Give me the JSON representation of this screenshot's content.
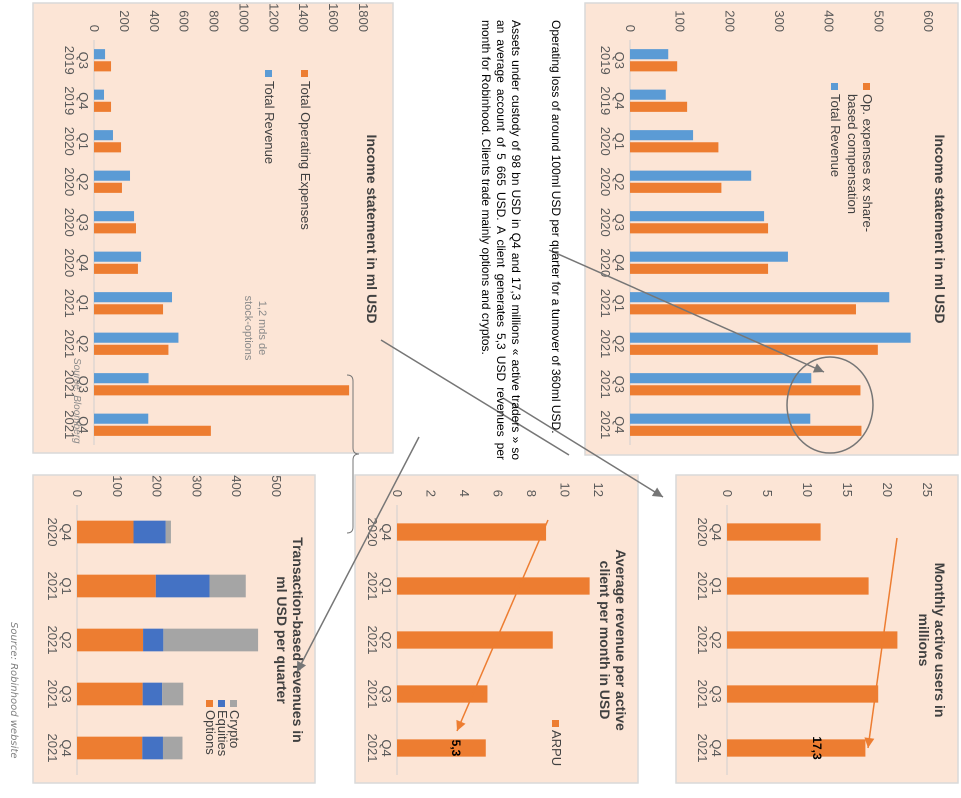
{
  "colors": {
    "orange": "#ed7d31",
    "blue": "#5b9bd5",
    "equities_blue": "#4472c4",
    "crypto_gray": "#a5a5a5",
    "panel_bg": "#fce5d6",
    "annotation_gray": "#767676"
  },
  "notes": {
    "operating_loss": "Operating loss of around 100ml USD per quarter for a tumover of 360ml USD.",
    "assets": "Assets under custody of 98 bn USD in Q4 and 17,3 millions « active traders » so an average account of 5 665 USD. A client generates 5,3 USD revenues per month for Robinhood. Clients trade mainly options and cryptos."
  },
  "source_label": "Source: Robinhood website",
  "chart_data": [
    {
      "id": "income_ex_sbc",
      "type": "bar",
      "title": "Income statement in ml USD",
      "categories": [
        "Q3 2019",
        "Q4 2019",
        "Q1 2020",
        "Q2 2020",
        "Q3 2020",
        "Q4 2020",
        "Q1 2021",
        "Q2 2021",
        "Q3 2021",
        "Q4 2021"
      ],
      "series": [
        {
          "name": "Op. expenses ex share-based compensation",
          "color": "#ed7d31",
          "values": [
            95,
            115,
            178,
            184,
            278,
            278,
            455,
            499,
            464,
            466
          ]
        },
        {
          "name": "Total Revenue",
          "color": "#5b9bd5",
          "values": [
            77,
            72,
            127,
            244,
            270,
            318,
            522,
            565,
            365,
            363
          ]
        }
      ],
      "ylim": [
        0,
        600
      ],
      "yticks": [
        0,
        100,
        200,
        300,
        400,
        500,
        600
      ],
      "legend": "top-left",
      "annotation": "ellipse around Q3 2021 and Q4 2021"
    },
    {
      "id": "income_total",
      "type": "bar",
      "title": "Income statement in ml USD",
      "categories": [
        "Q3 2019",
        "Q4 2019",
        "Q1 2020",
        "Q2 2020",
        "Q3 2020",
        "Q4 2020",
        "Q1 2021",
        "Q2 2021",
        "Q3 2021",
        "Q4 2021"
      ],
      "series": [
        {
          "name": "Total Operating Expenses",
          "color": "#ed7d31",
          "values": [
            114,
            114,
            181,
            187,
            281,
            294,
            462,
            498,
            1707,
            782
          ]
        },
        {
          "name": "Total Revenue",
          "color": "#5b9bd5",
          "values": [
            74,
            67,
            127,
            241,
            268,
            315,
            522,
            565,
            365,
            363
          ]
        }
      ],
      "ylim": [
        0,
        1800
      ],
      "yticks": [
        0,
        200,
        400,
        600,
        800,
        1000,
        1200,
        1400,
        1600,
        1800
      ],
      "legend": "top-left",
      "annotation": "1,2 mds de stock-options",
      "source_note": "Source: Bloomberg"
    },
    {
      "id": "mau",
      "type": "bar",
      "title": "Monthly active users in millions",
      "categories": [
        "Q4 2020",
        "Q1 2021",
        "Q2 2021",
        "Q3 2021",
        "Q4 2021"
      ],
      "series": [
        {
          "name": "MAU",
          "color": "#ed7d31",
          "values": [
            11.7,
            17.7,
            21.3,
            18.9,
            17.3
          ]
        }
      ],
      "data_labels": {
        "4": "17,3"
      },
      "ylim": [
        0,
        25
      ],
      "yticks": [
        0,
        5,
        10,
        15,
        20,
        25
      ]
    },
    {
      "id": "arpu",
      "type": "bar",
      "title": "Average revenue per active client per month in USD",
      "categories": [
        "Q4 2020",
        "Q1 2021",
        "Q2 2021",
        "Q3 2021",
        "Q4 2021"
      ],
      "series": [
        {
          "name": "ARPU",
          "color": "#ed7d31",
          "values": [
            8.9,
            11.5,
            9.3,
            5.4,
            5.3
          ]
        }
      ],
      "data_labels": {
        "4": "5,3"
      },
      "ylim": [
        0,
        12
      ],
      "yticks": [
        0,
        2,
        4,
        6,
        8,
        10,
        12
      ],
      "legend": "right"
    },
    {
      "id": "transactions",
      "type": "bar",
      "stacked": true,
      "title": "Transaction-based revenues in ml USD per quarter",
      "categories": [
        "Q4 2020",
        "Q1 2021",
        "Q2 2021",
        "Q3 2021",
        "Q4 2021"
      ],
      "series": [
        {
          "name": "Options",
          "color": "#ed7d31",
          "values": [
            142,
            198,
            166,
            165,
            164
          ]
        },
        {
          "name": "Equities",
          "color": "#4472c4",
          "values": [
            81,
            135,
            51,
            49,
            52
          ]
        },
        {
          "name": "Crypto",
          "color": "#a5a5a5",
          "values": [
            13,
            91,
            238,
            53,
            49
          ]
        }
      ],
      "ylim": [
        0,
        500
      ],
      "yticks": [
        0,
        100,
        200,
        300,
        400,
        500
      ],
      "legend": "right"
    }
  ],
  "labels": {
    "bracket_note_line1": "1,2 mds de",
    "bracket_note_line2": "stock-options",
    "bloomberg_source": "Source: Bloomberg",
    "mau_title_1": "Monthly active users in",
    "mau_title_2": "millions",
    "arpu_title_1": "Average revenue per active",
    "arpu_title_2": "client per month in USD",
    "tx_title_1": "Transaction-based revenues in",
    "tx_title_2": "ml USD per quarter",
    "legend_sbc_1": "Op. expenses ex share-",
    "legend_sbc_2": "based compensation"
  }
}
